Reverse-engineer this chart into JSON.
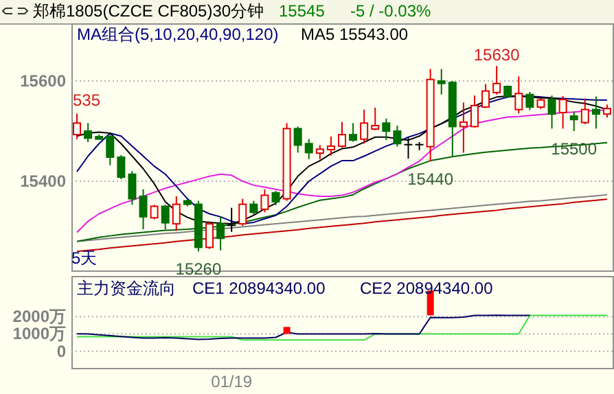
{
  "chart_data": [
    {
      "type": "candlestick",
      "title": "郑棉1805(CZCE CF805)30分钟",
      "categories": [
        null,
        null,
        null,
        null,
        null,
        null,
        null,
        null,
        null,
        null,
        null,
        null,
        null,
        null,
        null,
        null,
        null,
        null,
        null,
        null,
        null,
        null,
        null,
        null,
        null,
        null,
        null,
        null,
        null,
        null,
        null,
        null,
        null,
        null,
        null,
        null,
        null,
        null,
        null,
        null,
        null,
        null,
        null,
        null,
        null,
        null,
        null,
        null,
        null
      ],
      "ohlc": [
        [
          15493,
          15535,
          15484,
          15516
        ],
        [
          15500,
          15516,
          15478,
          15486
        ],
        [
          15489,
          15493,
          15484,
          15484
        ],
        [
          15489,
          15493,
          15432,
          15448
        ],
        [
          15448,
          15452,
          15404,
          15408
        ],
        [
          15414,
          15420,
          15353,
          15365
        ],
        [
          15370,
          15384,
          15304,
          15329
        ],
        [
          15327,
          15353,
          15324,
          15350
        ],
        [
          15350,
          15353,
          15304,
          15317
        ],
        [
          15315,
          15370,
          15301,
          15354
        ],
        [
          15361,
          15363,
          15350,
          15354
        ],
        [
          15354,
          15361,
          15260,
          15268
        ],
        [
          15268,
          15320,
          15265,
          15315
        ],
        [
          15315,
          15329,
          15262,
          15286
        ],
        [
          15312,
          15347,
          15299,
          15312
        ],
        [
          15315,
          15365,
          15311,
          15354
        ],
        [
          15354,
          15361,
          15334,
          15338
        ],
        [
          15344,
          15384,
          15338,
          15372
        ],
        [
          15377,
          15381,
          15352,
          15359
        ],
        [
          15365,
          15516,
          15361,
          15505
        ],
        [
          15505,
          15509,
          15457,
          15472
        ],
        [
          15475,
          15484,
          15444,
          15457
        ],
        [
          15456,
          15472,
          15444,
          15464
        ],
        [
          15463,
          15489,
          15451,
          15470
        ],
        [
          15470,
          15518,
          15467,
          15493
        ],
        [
          15493,
          15516,
          15479,
          15482
        ],
        [
          15484,
          15543,
          15475,
          15516
        ],
        [
          15504,
          15547,
          15502,
          15511
        ],
        [
          15516,
          15525,
          15482,
          15500
        ],
        [
          15500,
          15511,
          15469,
          15475
        ],
        [
          15473,
          15487,
          15445,
          15473
        ],
        [
          15473,
          15478,
          15462,
          15473
        ],
        [
          15469,
          15624,
          15440,
          15603
        ],
        [
          15600,
          15624,
          15573,
          15595
        ],
        [
          15597,
          15600,
          15448,
          15509
        ],
        [
          15509,
          15557,
          15457,
          15518
        ],
        [
          15509,
          15571,
          15507,
          15551
        ],
        [
          15548,
          15594,
          15546,
          15580
        ],
        [
          15577,
          15630,
          15573,
          15595
        ],
        [
          15589,
          15591,
          15566,
          15569
        ],
        [
          15543,
          15609,
          15535,
          15575
        ],
        [
          15573,
          15578,
          15542,
          15548
        ],
        [
          15548,
          15566,
          15544,
          15562
        ],
        [
          15563,
          15571,
          15505,
          15534
        ],
        [
          15537,
          15570,
          15505,
          15563
        ],
        [
          15530,
          15539,
          15500,
          15523
        ],
        [
          15517,
          15565,
          15514,
          15543
        ],
        [
          15543,
          15569,
          15505,
          15534
        ],
        [
          15534,
          15553,
          15527,
          15545
        ]
      ],
      "colors": [
        "#e00000",
        "#007000",
        "#007000",
        "#007000",
        "#007000",
        "#007000",
        "#007000",
        "#e00000",
        "#007000",
        "#e00000",
        "#007000",
        "#007000",
        "#e00000",
        "#007000",
        "#000000",
        "#e00000",
        "#007000",
        "#e00000",
        "#007000",
        "#e00000",
        "#007000",
        "#007000",
        "#e00000",
        "#e00000",
        "#e00000",
        "#007000",
        "#e00000",
        "#e00000",
        "#007000",
        "#007000",
        "#000000",
        "#000000",
        "#e00000",
        "#007000",
        "#007000",
        "#e00000",
        "#e00000",
        "#e00000",
        "#e00000",
        "#007000",
        "#e00000",
        "#007000",
        "#e00000",
        "#007000",
        "#e00000",
        "#007000",
        "#e00000",
        "#007000",
        "#e00000"
      ],
      "series": [
        {
          "type": "line",
          "color": "#808080",
          "values": [
            15280,
            15282,
            15284,
            15286,
            15288,
            15290,
            15292,
            15294,
            15296,
            15297,
            15299,
            15301,
            15303,
            15305,
            15307,
            15309,
            15311,
            15313,
            15315,
            15317,
            15319,
            15321,
            15323,
            15325,
            15327,
            15329,
            15330,
            15332,
            15334,
            15336,
            15338,
            15340,
            15342,
            15344,
            15346,
            15348,
            15350,
            15352,
            15354,
            15356,
            15358,
            15360,
            15361,
            15363,
            15365,
            15367,
            15369,
            15371,
            15373
          ]
        },
        {
          "type": "line",
          "color": "#c00000",
          "values": [
            15260,
            15262,
            15264,
            15267,
            15269,
            15271,
            15273,
            15275,
            15277,
            15280,
            15282,
            15284,
            15286,
            15288,
            15290,
            15293,
            15295,
            15297,
            15299,
            15301,
            15303,
            15306,
            15308,
            15310,
            15312,
            15314,
            15316,
            15319,
            15321,
            15323,
            15325,
            15327,
            15329,
            15332,
            15334,
            15336,
            15338,
            15340,
            15342,
            15345,
            15347,
            15349,
            15351,
            15353,
            15355,
            15358,
            15360,
            15362,
            15364
          ]
        },
        {
          "type": "line",
          "color": "#006400",
          "values": [
            15280,
            15284,
            15288,
            15291,
            15294,
            15296,
            15298,
            15300,
            15302,
            15303,
            15304,
            15306,
            15308,
            15310,
            15314,
            15318,
            15323,
            15328,
            15333,
            15340,
            15348,
            15355,
            15362,
            15365,
            15368,
            15373,
            15385,
            15395,
            15405,
            15415,
            15425,
            15433,
            15441,
            15445,
            15449,
            15452,
            15455,
            15458,
            15460,
            15462,
            15464,
            15466,
            15467,
            15469,
            15470,
            15472,
            15473,
            15475,
            15477
          ]
        },
        {
          "type": "line",
          "color": "#e020e0",
          "values": [
            15298,
            15320,
            15335,
            15345,
            15355,
            15362,
            15370,
            15378,
            15386,
            15392,
            15398,
            15404,
            15410,
            15414,
            15412,
            15400,
            15392,
            15388,
            15384,
            15380,
            15375,
            15372,
            15370,
            15370,
            15372,
            15378,
            15388,
            15398,
            15405,
            15415,
            15428,
            15440,
            15460,
            15475,
            15490,
            15505,
            15515,
            15520,
            15524,
            15528,
            15529,
            15531,
            15533,
            15535,
            15537,
            15538,
            15540,
            15541,
            15542
          ]
        },
        {
          "type": "line",
          "color": "#000080",
          "values": [
            15419,
            15450,
            15475,
            15496,
            15490,
            15470,
            15450,
            15430,
            15414,
            15390,
            15365,
            15345,
            15335,
            15329,
            15320,
            15315,
            15318,
            15325,
            15332,
            15350,
            15375,
            15400,
            15415,
            15430,
            15441,
            15441,
            15450,
            15460,
            15470,
            15478,
            15488,
            15495,
            15505,
            15515,
            15525,
            15534,
            15545,
            15555,
            15562,
            15568,
            15570,
            15570,
            15568,
            15566,
            15565,
            15564,
            15563,
            15562,
            15562
          ]
        },
        {
          "type": "line",
          "color": "#000000",
          "values": [
            15490,
            15496,
            15498,
            15496,
            15475,
            15450,
            15425,
            15395,
            15359,
            15340,
            15328,
            15320,
            15318,
            15316,
            15315,
            15322,
            15332,
            15345,
            15356,
            15380,
            15410,
            15430,
            15441,
            15455,
            15465,
            15468,
            15478,
            15488,
            15488,
            15485,
            15482,
            15490,
            15505,
            15515,
            15528,
            15542,
            15550,
            15560,
            15568,
            15570,
            15570,
            15568,
            15566,
            15566,
            15562,
            15558,
            15555,
            15550,
            15543
          ]
        }
      ],
      "ylim": [
        15222,
        15715
      ],
      "yticks": [
        15400,
        15600
      ],
      "grid": "y",
      "tick_labels": "y",
      "annotations": [
        "15545",
        "-5 / -0.03%",
        "MA组合(5,10,20,40,90,120)",
        "MA5 15543.00",
        "5天",
        "535",
        {
          "text": "15630",
          "y": 15630
        },
        {
          "text": "15260",
          "y": 15260
        },
        {
          "text": "15440",
          "y": 15440
        },
        {
          "text": "15500",
          "y": 15500
        }
      ]
    },
    {
      "type": "line",
      "title": "主力资金流向",
      "categories": [
        null,
        null,
        null,
        null,
        null,
        null,
        null,
        null,
        null,
        null,
        null,
        null,
        null,
        null,
        "01/19",
        null,
        null,
        null,
        null,
        null,
        null,
        null,
        null,
        null,
        null,
        null,
        null,
        null,
        null,
        null,
        null,
        null,
        null,
        null,
        null,
        null,
        null,
        null,
        null,
        null,
        null,
        null,
        null,
        null,
        null,
        null,
        null,
        null,
        null
      ],
      "series": [
        {
          "color": "#40e040",
          "values": [
            840,
            840,
            840,
            840,
            840,
            840,
            840,
            840,
            840,
            840,
            840,
            840,
            840,
            840,
            840,
            650,
            650,
            650,
            650,
            650,
            650,
            650,
            650,
            650,
            650,
            650,
            650,
            1000,
            1000,
            1000,
            1000,
            1000,
            1000,
            1000,
            1000,
            1000,
            1000,
            1000,
            1000,
            1000,
            1000,
            2070,
            2070,
            2070,
            2070,
            2070,
            2070,
            2070,
            2070
          ]
        },
        {
          "color": "#000060",
          "values": [
            1010,
            1000,
            950,
            900,
            850,
            800,
            760,
            760,
            780,
            760,
            720,
            680,
            700,
            740,
            760,
            760,
            760,
            760,
            800,
            1090,
            1000,
            1000,
            1000,
            1000,
            1000,
            1000,
            1000,
            1020,
            1000,
            1000,
            1000,
            1000,
            1950,
            1940,
            1940,
            1970,
            2070,
            2070,
            2080,
            2070,
            2070,
            2070,
            null,
            null,
            null,
            null,
            null,
            null,
            null
          ]
        },
        {
          "type": "bar",
          "color": "#ff0000",
          "values": [
            null,
            null,
            null,
            null,
            null,
            null,
            null,
            null,
            null,
            null,
            null,
            null,
            null,
            null,
            null,
            null,
            null,
            null,
            null,
            400,
            null,
            null,
            null,
            null,
            null,
            null,
            null,
            null,
            null,
            null,
            null,
            null,
            1430,
            null,
            null,
            null,
            null,
            null,
            null,
            null,
            null,
            null,
            null,
            null,
            null,
            null,
            null,
            null,
            null
          ],
          "base": [
            null,
            null,
            null,
            null,
            null,
            null,
            null,
            null,
            null,
            null,
            null,
            null,
            null,
            null,
            null,
            null,
            null,
            null,
            null,
            1000,
            null,
            null,
            null,
            null,
            null,
            null,
            null,
            null,
            null,
            null,
            null,
            null,
            2070,
            null,
            null,
            null,
            null,
            null,
            null,
            null,
            null,
            null,
            null,
            null,
            null,
            null,
            null,
            null,
            null
          ]
        }
      ],
      "ylim": [
        -960,
        4340
      ],
      "yticks": [
        0,
        {
          "value": 1000,
          "label": "1000万"
        },
        {
          "value": 2000,
          "label": "2000万"
        }
      ],
      "grid": "y",
      "annotations": [
        "CE1  20894340.00",
        "CE2  20894340.00"
      ]
    }
  ]
}
